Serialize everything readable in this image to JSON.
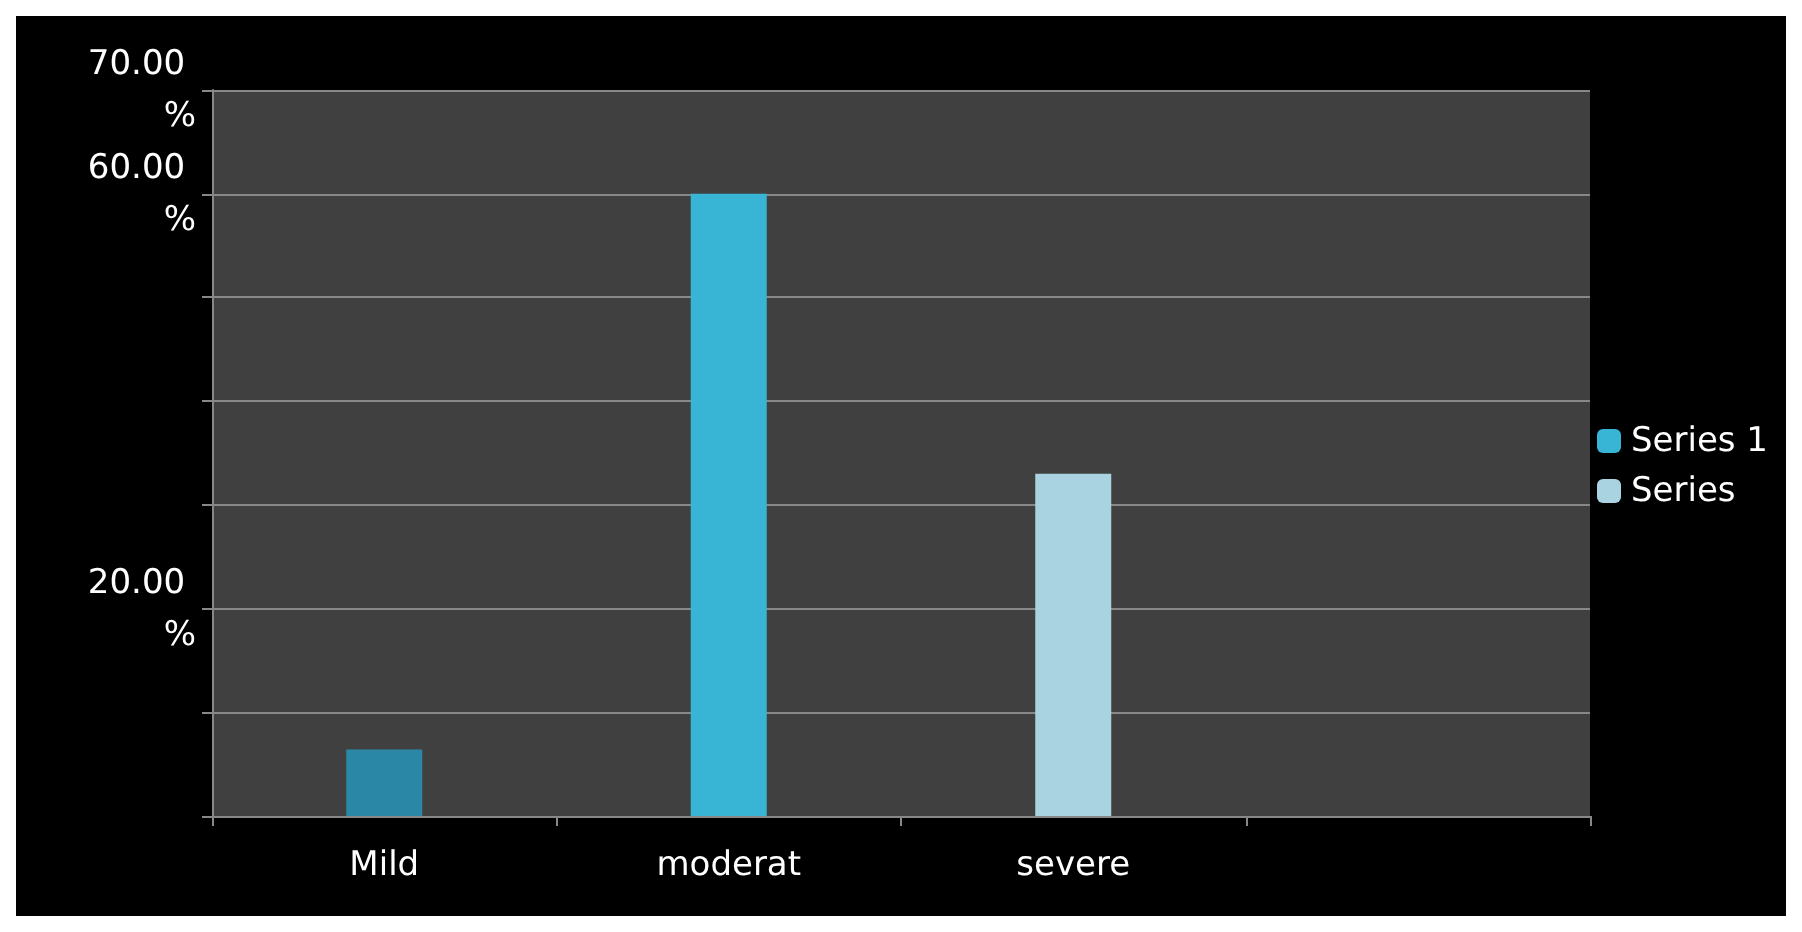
{
  "chart_data": {
    "type": "bar",
    "categories": [
      "Mild",
      "moderat",
      "severe",
      null
    ],
    "series": [
      {
        "name": "Series 1",
        "color": "#38b4d4",
        "colors": [
          "#2a88a6",
          "#38b4d4",
          null,
          null
        ],
        "values": [
          6.4,
          60,
          null,
          null
        ]
      },
      {
        "name": "Series",
        "color": "#a9d3e0",
        "values": [
          null,
          null,
          33,
          null
        ]
      }
    ],
    "ylim": [
      0,
      70
    ],
    "yticks": [
      {
        "value": 0,
        "label": null
      },
      {
        "value": 10,
        "label": null
      },
      {
        "value": 20,
        "label": "20.00 %"
      },
      {
        "value": 30,
        "label": null
      },
      {
        "value": 40,
        "label": null
      },
      {
        "value": 50,
        "label": null
      },
      {
        "value": 60,
        "label": "60.00 %"
      },
      {
        "value": 70,
        "label": "70.00 %"
      }
    ],
    "grid": "y",
    "legend": "right"
  }
}
